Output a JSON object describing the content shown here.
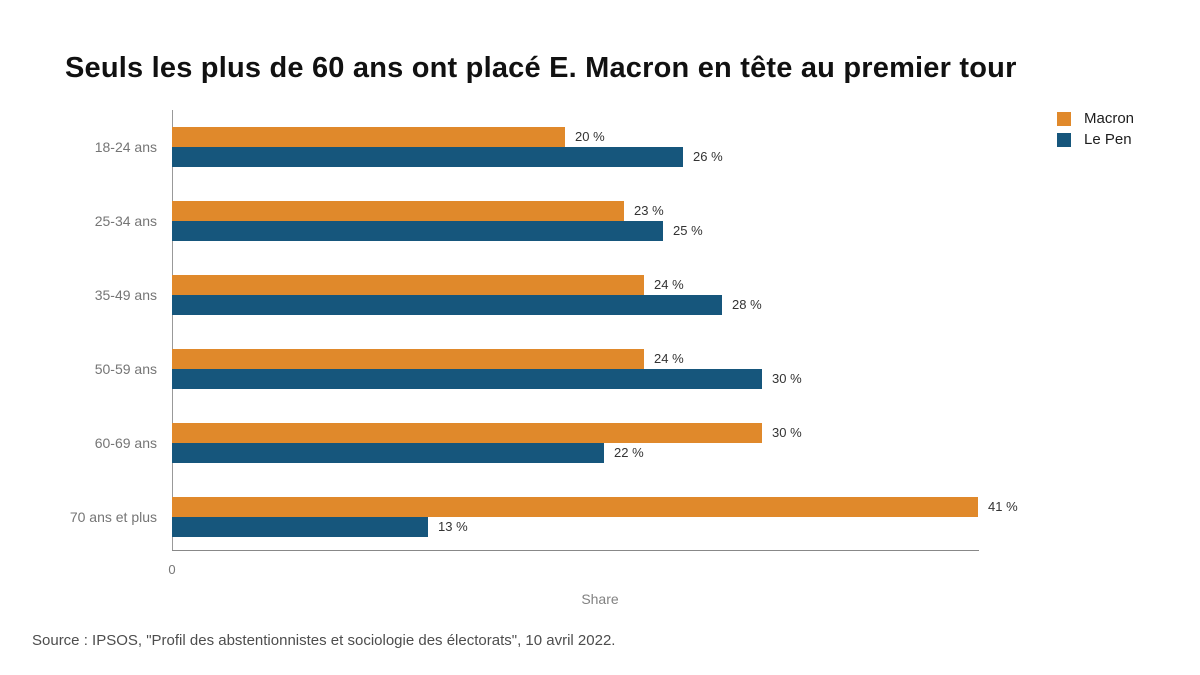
{
  "title": "Seuls les plus de 60 ans ont placé E. Macron en tête au premier tour",
  "source": "Source : IPSOS, \"Profil des abstentionnistes et sociologie des électorats\", 10 avril 2022.",
  "chart_data": {
    "type": "bar",
    "orientation": "horizontal",
    "title": "Seuls les plus de 60 ans ont placé E. Macron en tête au premier tour",
    "categories": [
      "18-24 ans",
      "25-34 ans",
      "35-49 ans",
      "50-59 ans",
      "60-69 ans",
      "70 ans et plus"
    ],
    "series": [
      {
        "name": "Macron",
        "color": "#E0892B",
        "values": [
          20,
          23,
          24,
          24,
          30,
          41
        ]
      },
      {
        "name": "Le Pen",
        "color": "#16567C",
        "values": [
          26,
          25,
          28,
          30,
          22,
          13
        ]
      }
    ],
    "value_suffix": " %",
    "xlabel": "Share",
    "x_tick_labels": [
      "0"
    ],
    "xlim": [
      0,
      41
    ],
    "grid": false,
    "legend_position": "top-right"
  }
}
